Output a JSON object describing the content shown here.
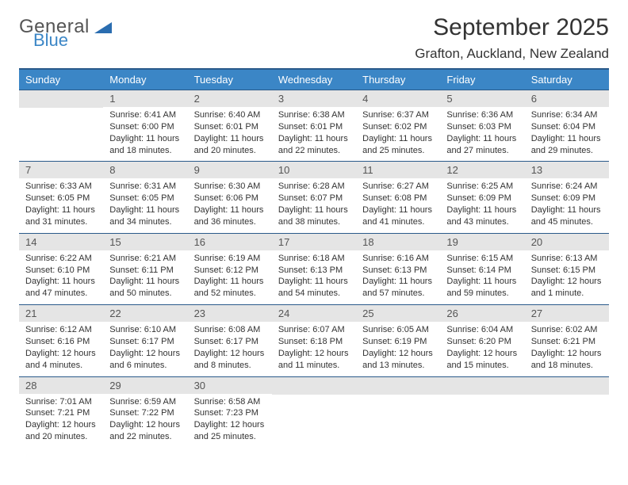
{
  "logo": {
    "general": "General",
    "blue": "Blue"
  },
  "title": "September 2025",
  "location": "Grafton, Auckland, New Zealand",
  "colors": {
    "header_bg": "#3b86c6",
    "header_text": "#ffffff",
    "daynum_bg": "#e5e5e5",
    "rule": "#2a5a8a",
    "logo_blue": "#3b86c6"
  },
  "days_of_week": [
    "Sunday",
    "Monday",
    "Tuesday",
    "Wednesday",
    "Thursday",
    "Friday",
    "Saturday"
  ],
  "weeks": [
    [
      null,
      {
        "n": "1",
        "sr": "Sunrise: 6:41 AM",
        "ss": "Sunset: 6:00 PM",
        "dl": "Daylight: 11 hours and 18 minutes."
      },
      {
        "n": "2",
        "sr": "Sunrise: 6:40 AM",
        "ss": "Sunset: 6:01 PM",
        "dl": "Daylight: 11 hours and 20 minutes."
      },
      {
        "n": "3",
        "sr": "Sunrise: 6:38 AM",
        "ss": "Sunset: 6:01 PM",
        "dl": "Daylight: 11 hours and 22 minutes."
      },
      {
        "n": "4",
        "sr": "Sunrise: 6:37 AM",
        "ss": "Sunset: 6:02 PM",
        "dl": "Daylight: 11 hours and 25 minutes."
      },
      {
        "n": "5",
        "sr": "Sunrise: 6:36 AM",
        "ss": "Sunset: 6:03 PM",
        "dl": "Daylight: 11 hours and 27 minutes."
      },
      {
        "n": "6",
        "sr": "Sunrise: 6:34 AM",
        "ss": "Sunset: 6:04 PM",
        "dl": "Daylight: 11 hours and 29 minutes."
      }
    ],
    [
      {
        "n": "7",
        "sr": "Sunrise: 6:33 AM",
        "ss": "Sunset: 6:05 PM",
        "dl": "Daylight: 11 hours and 31 minutes."
      },
      {
        "n": "8",
        "sr": "Sunrise: 6:31 AM",
        "ss": "Sunset: 6:05 PM",
        "dl": "Daylight: 11 hours and 34 minutes."
      },
      {
        "n": "9",
        "sr": "Sunrise: 6:30 AM",
        "ss": "Sunset: 6:06 PM",
        "dl": "Daylight: 11 hours and 36 minutes."
      },
      {
        "n": "10",
        "sr": "Sunrise: 6:28 AM",
        "ss": "Sunset: 6:07 PM",
        "dl": "Daylight: 11 hours and 38 minutes."
      },
      {
        "n": "11",
        "sr": "Sunrise: 6:27 AM",
        "ss": "Sunset: 6:08 PM",
        "dl": "Daylight: 11 hours and 41 minutes."
      },
      {
        "n": "12",
        "sr": "Sunrise: 6:25 AM",
        "ss": "Sunset: 6:09 PM",
        "dl": "Daylight: 11 hours and 43 minutes."
      },
      {
        "n": "13",
        "sr": "Sunrise: 6:24 AM",
        "ss": "Sunset: 6:09 PM",
        "dl": "Daylight: 11 hours and 45 minutes."
      }
    ],
    [
      {
        "n": "14",
        "sr": "Sunrise: 6:22 AM",
        "ss": "Sunset: 6:10 PM",
        "dl": "Daylight: 11 hours and 47 minutes."
      },
      {
        "n": "15",
        "sr": "Sunrise: 6:21 AM",
        "ss": "Sunset: 6:11 PM",
        "dl": "Daylight: 11 hours and 50 minutes."
      },
      {
        "n": "16",
        "sr": "Sunrise: 6:19 AM",
        "ss": "Sunset: 6:12 PM",
        "dl": "Daylight: 11 hours and 52 minutes."
      },
      {
        "n": "17",
        "sr": "Sunrise: 6:18 AM",
        "ss": "Sunset: 6:13 PM",
        "dl": "Daylight: 11 hours and 54 minutes."
      },
      {
        "n": "18",
        "sr": "Sunrise: 6:16 AM",
        "ss": "Sunset: 6:13 PM",
        "dl": "Daylight: 11 hours and 57 minutes."
      },
      {
        "n": "19",
        "sr": "Sunrise: 6:15 AM",
        "ss": "Sunset: 6:14 PM",
        "dl": "Daylight: 11 hours and 59 minutes."
      },
      {
        "n": "20",
        "sr": "Sunrise: 6:13 AM",
        "ss": "Sunset: 6:15 PM",
        "dl": "Daylight: 12 hours and 1 minute."
      }
    ],
    [
      {
        "n": "21",
        "sr": "Sunrise: 6:12 AM",
        "ss": "Sunset: 6:16 PM",
        "dl": "Daylight: 12 hours and 4 minutes."
      },
      {
        "n": "22",
        "sr": "Sunrise: 6:10 AM",
        "ss": "Sunset: 6:17 PM",
        "dl": "Daylight: 12 hours and 6 minutes."
      },
      {
        "n": "23",
        "sr": "Sunrise: 6:08 AM",
        "ss": "Sunset: 6:17 PM",
        "dl": "Daylight: 12 hours and 8 minutes."
      },
      {
        "n": "24",
        "sr": "Sunrise: 6:07 AM",
        "ss": "Sunset: 6:18 PM",
        "dl": "Daylight: 12 hours and 11 minutes."
      },
      {
        "n": "25",
        "sr": "Sunrise: 6:05 AM",
        "ss": "Sunset: 6:19 PM",
        "dl": "Daylight: 12 hours and 13 minutes."
      },
      {
        "n": "26",
        "sr": "Sunrise: 6:04 AM",
        "ss": "Sunset: 6:20 PM",
        "dl": "Daylight: 12 hours and 15 minutes."
      },
      {
        "n": "27",
        "sr": "Sunrise: 6:02 AM",
        "ss": "Sunset: 6:21 PM",
        "dl": "Daylight: 12 hours and 18 minutes."
      }
    ],
    [
      {
        "n": "28",
        "sr": "Sunrise: 7:01 AM",
        "ss": "Sunset: 7:21 PM",
        "dl": "Daylight: 12 hours and 20 minutes."
      },
      {
        "n": "29",
        "sr": "Sunrise: 6:59 AM",
        "ss": "Sunset: 7:22 PM",
        "dl": "Daylight: 12 hours and 22 minutes."
      },
      {
        "n": "30",
        "sr": "Sunrise: 6:58 AM",
        "ss": "Sunset: 7:23 PM",
        "dl": "Daylight: 12 hours and 25 minutes."
      },
      null,
      null,
      null,
      null
    ]
  ]
}
